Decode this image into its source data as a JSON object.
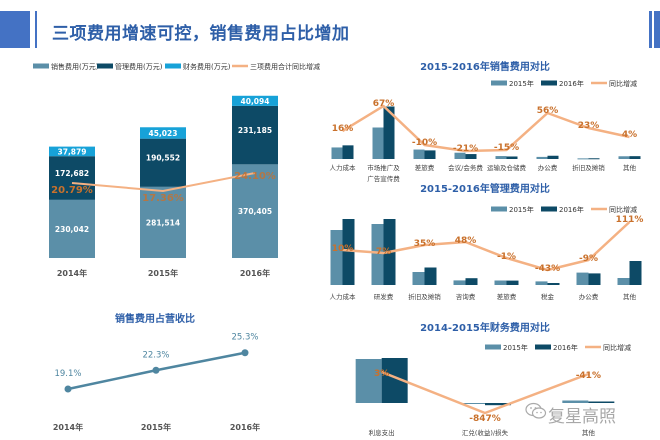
{
  "header": {
    "title": "三项费用增速可控，销售费用占比增加"
  },
  "colors": {
    "accent": "#4472c4",
    "title_blue": "#2e5fa8",
    "bar_light": "#5b8fa8",
    "bar_dark": "#0d4a66",
    "bar_cyan": "#17a2d8",
    "line_orange": "#f4b183",
    "label_orange": "#c9712c"
  },
  "watermark": {
    "icon": "wechat-icon",
    "text": "复星高照"
  },
  "chart_data": [
    {
      "id": "three-expenses",
      "type": "bar",
      "stacked": true,
      "title": "",
      "categories": [
        "2014年",
        "2015年",
        "2016年"
      ],
      "legend": [
        "销售费用(万元)",
        "管理费用(万元)",
        "财务费用(万元)",
        "三项费用合计同比增减"
      ],
      "legend_position": "top",
      "series": [
        {
          "name": "销售费用(万元)",
          "values": [
            230042,
            281514,
            370405
          ],
          "labels": [
            "230,042",
            "281,514",
            "370,405"
          ]
        },
        {
          "name": "管理费用(万元)",
          "values": [
            172682,
            190552,
            231185
          ],
          "labels": [
            "172,682",
            "190,552",
            "231,185"
          ]
        },
        {
          "name": "财务费用(万元)",
          "values": [
            37879,
            45023,
            40094
          ],
          "labels": [
            "37,879",
            "45,023",
            "40,094"
          ]
        }
      ],
      "line": {
        "name": "三项费用合计同比增减",
        "values": [
          20.79,
          17.36,
          24.1
        ],
        "labels": [
          "20.79%",
          "17.36%",
          "24.10%"
        ]
      },
      "ylim": [
        0,
        660000
      ]
    },
    {
      "id": "sales-comparison",
      "type": "bar",
      "title": "2015-2016年销售费用对比",
      "legend": [
        "2015年",
        "2016年",
        "同比增减"
      ],
      "legend_position": "top-right",
      "categories": [
        "人力成本",
        "市场推广及广告宣传费",
        "差旅费",
        "会议/会务费",
        "运输及仓储费",
        "办公费",
        "折旧及摊销",
        "其他"
      ],
      "category_lines": [
        [
          "人力成本"
        ],
        [
          "市场推广及",
          "广告宣传费"
        ],
        [
          "差旅费"
        ],
        [
          "会议/会务费"
        ],
        [
          "运输及仓储费"
        ],
        [
          "办公费"
        ],
        [
          "折旧及摊销"
        ],
        [
          "其他"
        ]
      ],
      "series": [
        {
          "name": "2015年",
          "values": [
            11,
            30,
            9,
            6,
            2.8,
            2,
            0.6,
            2.6
          ]
        },
        {
          "name": "2016年",
          "values": [
            13,
            50,
            8.2,
            4.7,
            2.4,
            3.1,
            0.7,
            2.7
          ]
        }
      ],
      "line": {
        "name": "同比增减",
        "values": [
          16,
          67,
          -10,
          -21,
          -15,
          56,
          23,
          4
        ],
        "labels": [
          "16%",
          "67%",
          "-10%",
          "-21%",
          "-15%",
          "56%",
          "23%",
          "4%"
        ]
      }
    },
    {
      "id": "admin-comparison",
      "type": "bar",
      "title": "2015-2016年管理费用对比",
      "legend": [
        "2015年",
        "2016年",
        "同比增减"
      ],
      "legend_position": "top-right",
      "categories": [
        "人力成本",
        "研发费",
        "折旧及摊销",
        "咨询费",
        "差旅费",
        "税金",
        "办公费",
        "其他"
      ],
      "category_lines": [
        [
          "人力成本"
        ],
        [
          "研发费"
        ],
        [
          "折旧及摊销"
        ],
        [
          "咨询费"
        ],
        [
          "差旅费"
        ],
        [
          "税金"
        ],
        [
          "办公费"
        ],
        [
          "其他"
        ]
      ],
      "series": [
        {
          "name": "2015年",
          "values": [
            55,
            61,
            13,
            4.6,
            4.5,
            3.6,
            12.4,
            7
          ]
        },
        {
          "name": "2016年",
          "values": [
            66,
            66,
            17.5,
            6.8,
            4.4,
            2,
            11.6,
            24
          ]
        }
      ],
      "line": {
        "name": "同比增减",
        "values": [
          10,
          7,
          35,
          48,
          -1,
          -43,
          -9,
          111
        ],
        "labels": [
          "10%",
          "7%",
          "35%",
          "48%",
          "-1%",
          "-43%",
          "-9%",
          "111%"
        ]
      }
    },
    {
      "id": "finance-comparison",
      "type": "bar",
      "title": "2014-2015年财务费用对比",
      "legend": [
        "2015年",
        "2016年",
        "同比增减"
      ],
      "legend_position": "top-right",
      "categories": [
        "利息支出",
        "汇兑(收益)/损失",
        "其他"
      ],
      "category_lines": [
        [
          "利息支出"
        ],
        [
          "汇兑(收益)/损失"
        ],
        [
          "其他"
        ]
      ],
      "series": [
        {
          "name": "2015年",
          "values": [
            44,
            -0.5,
            2.5
          ]
        },
        {
          "name": "2016年",
          "values": [
            45,
            -2.2,
            1.5
          ]
        }
      ],
      "line": {
        "name": "同比增减",
        "values": [
          3,
          -847,
          -41
        ],
        "labels": [
          "3%",
          "-847%",
          "-41%"
        ]
      }
    },
    {
      "id": "sales-to-revenue",
      "type": "line",
      "title": "销售费用占营收比",
      "categories": [
        "2014年",
        "2015年",
        "2016年"
      ],
      "values": [
        19.1,
        22.3,
        25.3
      ],
      "labels": [
        "19.1%",
        "22.3%",
        "25.3%"
      ],
      "ylim": [
        10,
        30
      ]
    }
  ]
}
